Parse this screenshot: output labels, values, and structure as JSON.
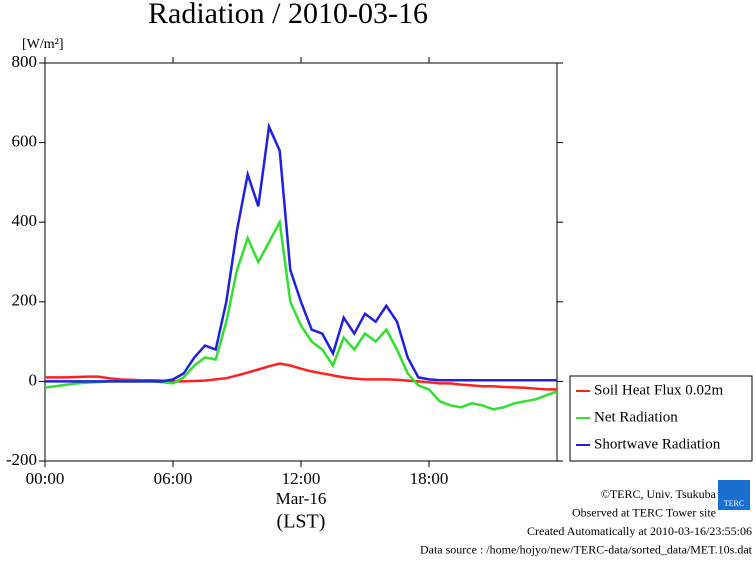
{
  "chart_data": {
    "type": "line",
    "title": "Radiation / 2010-03-16",
    "y_label": "[W/m²]",
    "x_label": "Mar-16",
    "x_label2": "(LST)",
    "x": [
      0,
      0.5,
      1,
      1.5,
      2,
      2.5,
      3,
      3.5,
      4,
      4.5,
      5,
      5.5,
      6,
      6.5,
      7,
      7.5,
      8,
      8.5,
      9,
      9.5,
      10,
      10.5,
      11,
      11.5,
      12,
      12.5,
      13,
      13.5,
      14,
      14.5,
      15,
      15.5,
      16,
      16.5,
      17,
      17.5,
      18,
      18.5,
      19,
      19.5,
      20,
      20.5,
      21,
      21.5,
      22,
      22.5,
      23,
      23.5,
      24
    ],
    "series": [
      {
        "name": "Soil Heat Flux 0.02m",
        "color": "#ff2020",
        "values": [
          10,
          10,
          10,
          11,
          12,
          12,
          8,
          5,
          4,
          3,
          3,
          2,
          0,
          0,
          1,
          2,
          5,
          8,
          15,
          22,
          30,
          38,
          45,
          40,
          32,
          25,
          20,
          15,
          10,
          7,
          5,
          5,
          5,
          4,
          2,
          0,
          -2,
          -5,
          -5,
          -8,
          -10,
          -12,
          -12,
          -14,
          -15,
          -16,
          -18,
          -20,
          -20
        ]
      },
      {
        "name": "Net Radiation",
        "color": "#30e030",
        "values": [
          -15,
          -12,
          -8,
          -5,
          -3,
          -2,
          0,
          0,
          0,
          0,
          0,
          -2,
          -5,
          10,
          40,
          60,
          55,
          150,
          280,
          360,
          300,
          350,
          400,
          200,
          140,
          100,
          80,
          40,
          110,
          80,
          120,
          100,
          130,
          80,
          20,
          -10,
          -20,
          -50,
          -60,
          -65,
          -55,
          -60,
          -70,
          -65,
          -55,
          -50,
          -45,
          -35,
          -25
        ]
      },
      {
        "name": "Shortwave Radiation",
        "color": "#2020e0",
        "values": [
          0,
          0,
          0,
          0,
          0,
          0,
          0,
          0,
          0,
          0,
          0,
          0,
          5,
          20,
          60,
          90,
          80,
          200,
          380,
          520,
          440,
          640,
          580,
          280,
          200,
          130,
          120,
          70,
          160,
          120,
          170,
          150,
          190,
          150,
          60,
          10,
          5,
          3,
          3,
          3,
          3,
          3,
          3,
          3,
          3,
          3,
          3,
          3,
          3
        ]
      }
    ],
    "xlim": [
      0,
      24
    ],
    "xticks": [
      {
        "value": 0,
        "label": "00:00"
      },
      {
        "value": 6,
        "label": "06:00"
      },
      {
        "value": 12,
        "label": "12:00"
      },
      {
        "value": 18,
        "label": "18:00"
      }
    ],
    "ylim": [
      -200,
      800
    ],
    "yticks": [
      -200,
      0,
      200,
      400,
      600,
      800
    ],
    "legend": "right",
    "footer": [
      "©TERC, Univ. Tsukuba",
      "Observed at TERC Tower site",
      "Created Automatically at 2010-03-16/23:55:06",
      "Data source : /home/hojyo/new/TERC-data/sorted_data/MET.10s.dat"
    ],
    "logo_text": "TERC"
  }
}
